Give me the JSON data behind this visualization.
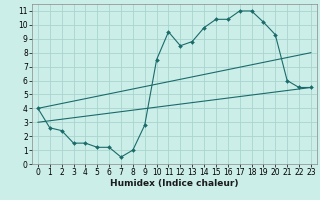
{
  "xlabel": "Humidex (Indice chaleur)",
  "ylabel": "",
  "bg_color": "#cceee8",
  "grid_color": "#aad4ce",
  "line_color": "#1a6b6b",
  "xlim": [
    -0.5,
    23.5
  ],
  "ylim": [
    0,
    11.5
  ],
  "xticks": [
    0,
    1,
    2,
    3,
    4,
    5,
    6,
    7,
    8,
    9,
    10,
    11,
    12,
    13,
    14,
    15,
    16,
    17,
    18,
    19,
    20,
    21,
    22,
    23
  ],
  "yticks": [
    0,
    1,
    2,
    3,
    4,
    5,
    6,
    7,
    8,
    9,
    10,
    11
  ],
  "line1_x": [
    0,
    1,
    2,
    3,
    4,
    5,
    6,
    7,
    8,
    9,
    10,
    11,
    12,
    13,
    14,
    15,
    16,
    17,
    18,
    19,
    20,
    21,
    22,
    23
  ],
  "line1_y": [
    4.0,
    2.6,
    2.4,
    1.5,
    1.5,
    1.2,
    1.2,
    0.5,
    1.0,
    2.8,
    7.5,
    9.5,
    8.5,
    8.8,
    9.8,
    10.4,
    10.4,
    11.0,
    11.0,
    10.2,
    9.3,
    6.0,
    5.5,
    5.5
  ],
  "line2_x": [
    0,
    23
  ],
  "line2_y": [
    4.0,
    8.0
  ],
  "line3_x": [
    0,
    23
  ],
  "line3_y": [
    3.0,
    5.5
  ],
  "marker": "D",
  "markersize": 2.0,
  "linewidth": 0.8,
  "tick_fontsize": 5.5,
  "xlabel_fontsize": 6.5
}
